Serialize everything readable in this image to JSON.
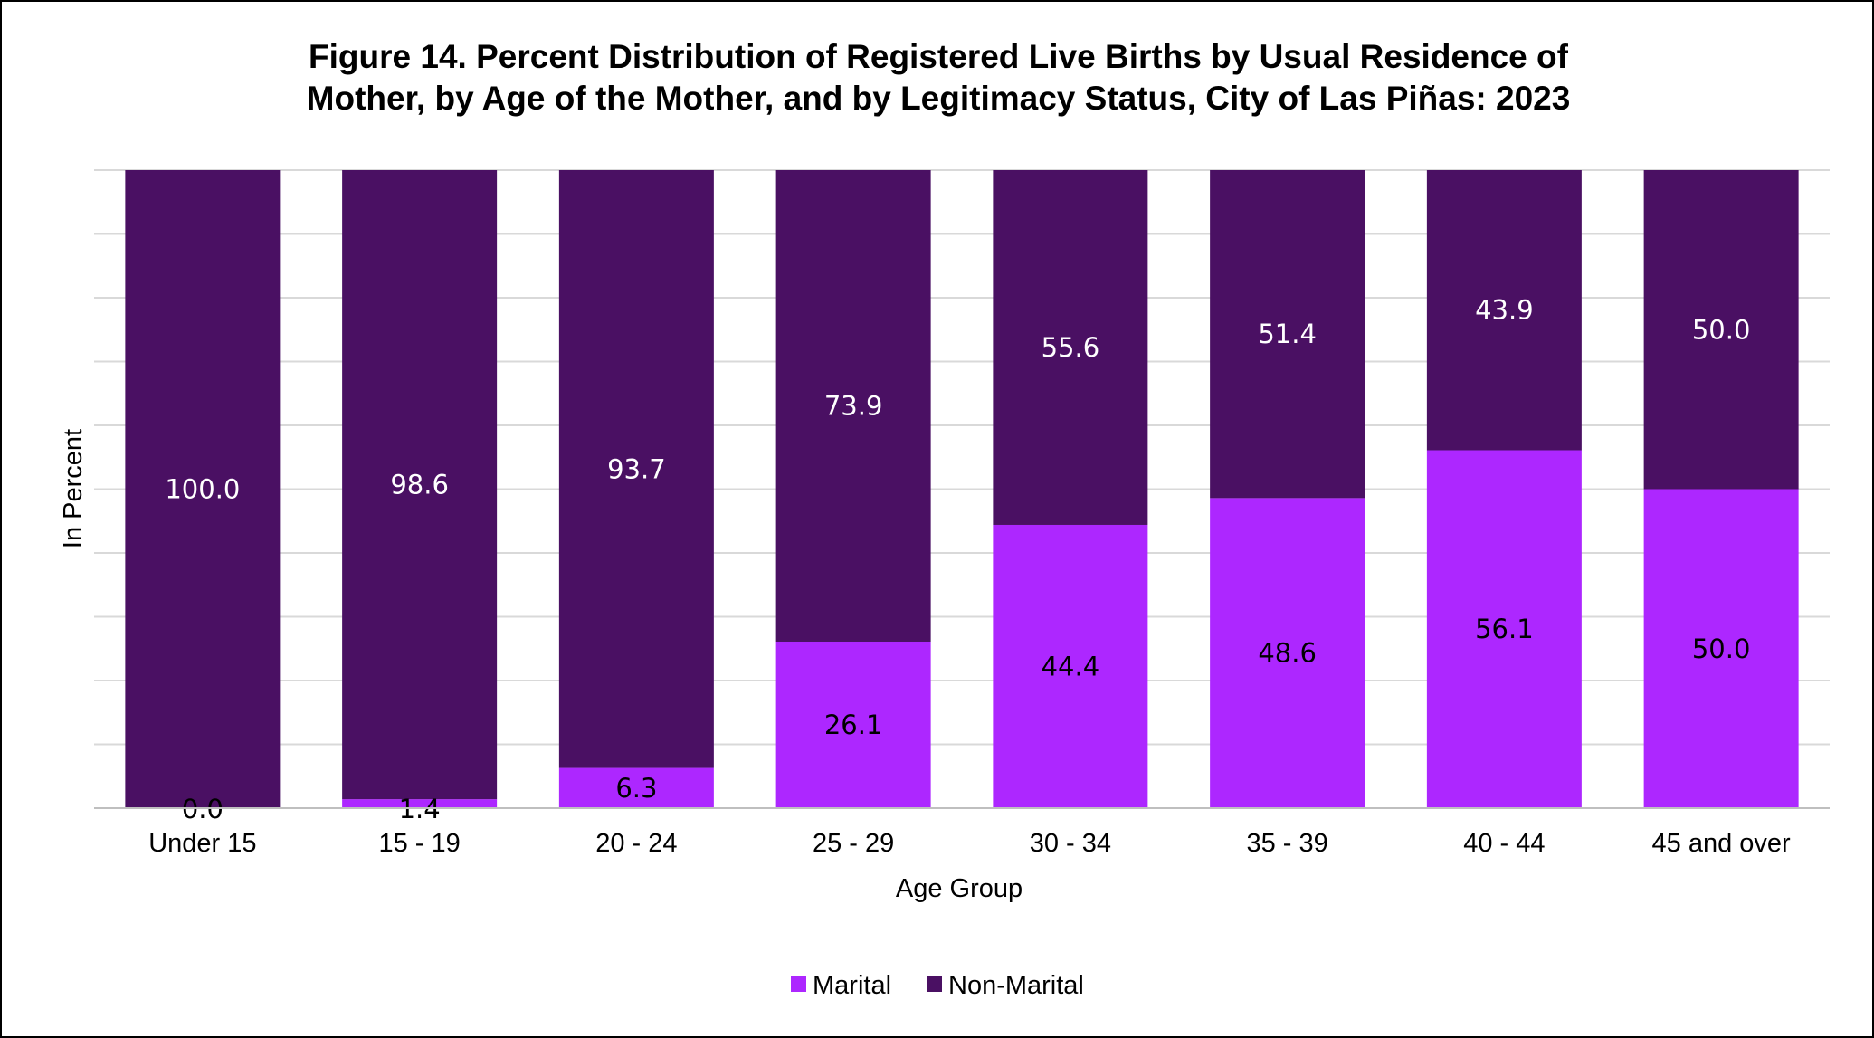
{
  "chart_data": {
    "type": "bar",
    "stacked": true,
    "title_lines": [
      "Figure 14. Percent Distribution of Registered Live Births by Usual Residence of",
      "Mother, by Age of the Mother, and by Legitimacy Status, City of Las Piñas: 2023"
    ],
    "xlabel": "Age Group",
    "ylabel": "In Percent",
    "ylim": [
      0,
      100
    ],
    "grid": true,
    "legend_position": "bottom",
    "categories": [
      "Under 15",
      "15 - 19",
      "20 - 24",
      "25 - 29",
      "30 - 34",
      "35 - 39",
      "40 - 44",
      "45 and over"
    ],
    "series": [
      {
        "name": "Marital",
        "color": "#AD27FF",
        "label_color": "#000000",
        "values": [
          0.0,
          1.4,
          6.3,
          26.1,
          44.4,
          48.6,
          56.1,
          50.0
        ],
        "labels": [
          "0.0",
          "1.4",
          "6.3",
          "26.1",
          "44.4",
          "48.6",
          "56.1",
          "50.0"
        ]
      },
      {
        "name": "Non-Marital",
        "color": "#4A1063",
        "label_color": "#ffffff",
        "values": [
          100.0,
          98.6,
          93.7,
          73.9,
          55.6,
          51.4,
          43.9,
          50.0
        ],
        "labels": [
          "100.0",
          "98.6",
          "93.7",
          "73.9",
          "55.6",
          "51.4",
          "43.9",
          "50.0"
        ]
      }
    ]
  }
}
